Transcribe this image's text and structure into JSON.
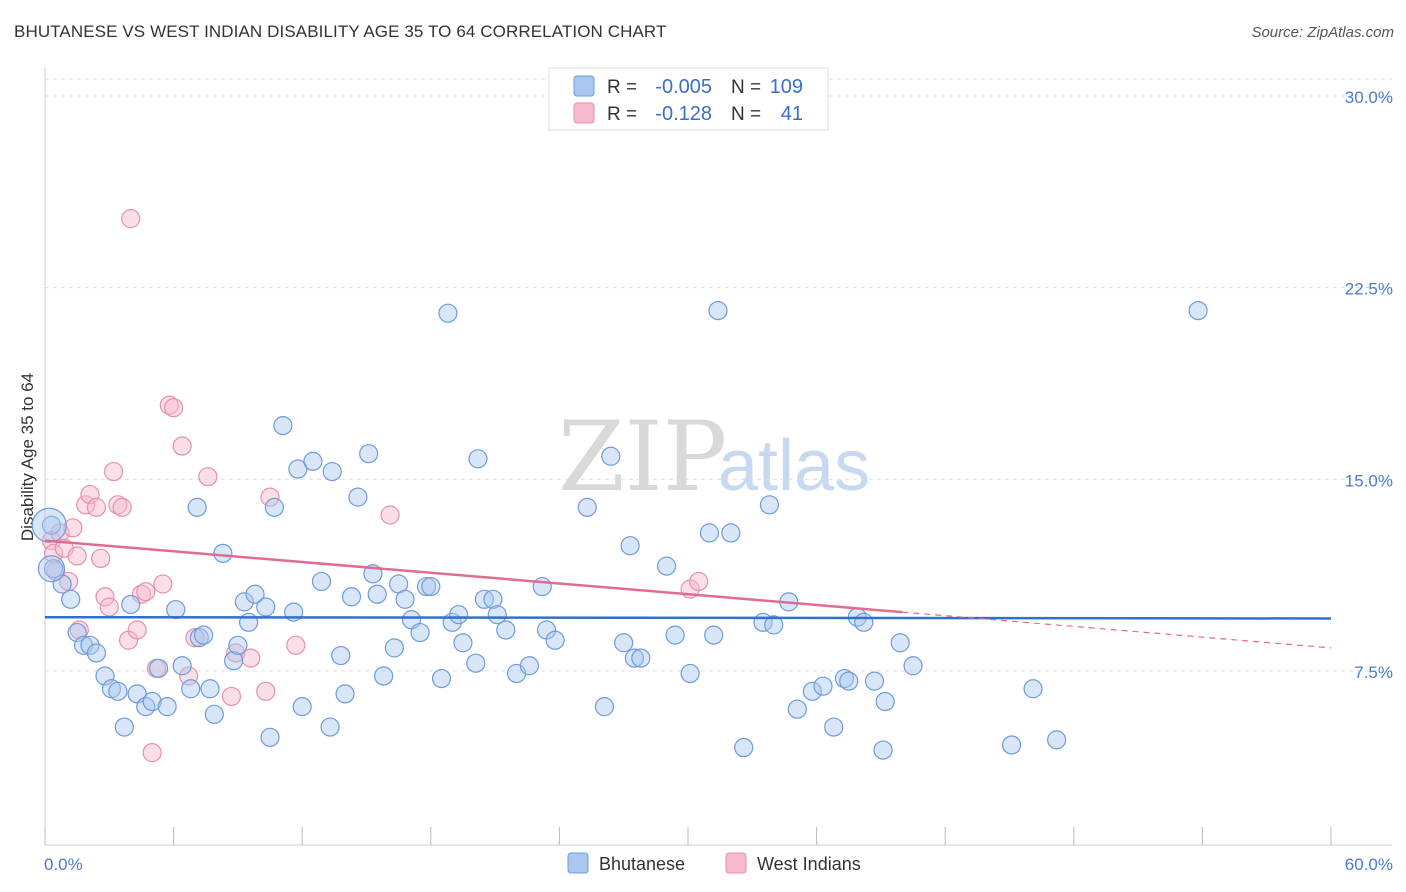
{
  "header": {
    "title": "BHUTANESE VS WEST INDIAN DISABILITY AGE 35 TO 64 CORRELATION CHART",
    "source": "Source: ZipAtlas.com"
  },
  "watermark": {
    "zip": "ZIP",
    "atlas": "atlas"
  },
  "colors": {
    "blue_fill": "#a9c7ef",
    "blue_stroke": "#6f9bd8",
    "blue_line": "#2f6fd0",
    "pink_fill": "#f6b8cb",
    "pink_stroke": "#e690ac",
    "pink_line": "#e06b93",
    "grid": "#dddddd",
    "tick_text": "#4a7cc9"
  },
  "legend": {
    "rows": [
      {
        "r_label": "R =",
        "r_value": "-0.005",
        "n_label": "N =",
        "n_value": "109"
      },
      {
        "r_label": "R =",
        "r_value": "-0.128",
        "n_label": "N =",
        "n_value": "41"
      }
    ]
  },
  "chart_data": {
    "type": "scatter",
    "title": "BHUTANESE VS WEST INDIAN DISABILITY AGE 35 TO 64 CORRELATION CHART",
    "xlabel": "",
    "ylabel": "Disability Age 35 to 64",
    "xlim": [
      0,
      60
    ],
    "ylim": [
      0,
      31
    ],
    "x_tick_labels": [
      "0.0%",
      "60.0%"
    ],
    "y_ticks": [
      7.5,
      15.0,
      22.5,
      30.0
    ],
    "y_tick_labels": [
      "7.5%",
      "15.0%",
      "22.5%",
      "30.0%"
    ],
    "grid": true,
    "legend_position": "top-center",
    "series": [
      {
        "name": "Bhutanese",
        "color": "#a9c7ef",
        "trend": {
          "x": [
            0,
            60
          ],
          "y": [
            9.6,
            9.55
          ],
          "dashed_after": null
        },
        "points": [
          [
            0.3,
            13.2
          ],
          [
            0.4,
            11.5
          ],
          [
            0.8,
            10.9
          ],
          [
            1.2,
            10.3
          ],
          [
            1.5,
            9.0
          ],
          [
            1.8,
            8.5
          ],
          [
            2.1,
            8.5
          ],
          [
            2.4,
            8.2
          ],
          [
            2.8,
            7.3
          ],
          [
            3.1,
            6.8
          ],
          [
            3.4,
            6.7
          ],
          [
            3.7,
            5.3
          ],
          [
            4.0,
            10.1
          ],
          [
            4.3,
            6.6
          ],
          [
            4.7,
            6.1
          ],
          [
            5.0,
            6.3
          ],
          [
            5.3,
            7.6
          ],
          [
            5.7,
            6.1
          ],
          [
            6.1,
            9.9
          ],
          [
            6.4,
            7.7
          ],
          [
            6.8,
            6.8
          ],
          [
            7.2,
            8.8
          ],
          [
            7.4,
            8.9
          ],
          [
            7.1,
            13.9
          ],
          [
            7.7,
            6.8
          ],
          [
            7.9,
            5.8
          ],
          [
            8.3,
            12.1
          ],
          [
            8.8,
            7.9
          ],
          [
            9.0,
            8.5
          ],
          [
            9.3,
            10.2
          ],
          [
            9.5,
            9.4
          ],
          [
            9.8,
            10.5
          ],
          [
            10.3,
            10.0
          ],
          [
            10.5,
            4.9
          ],
          [
            10.7,
            13.9
          ],
          [
            11.1,
            17.1
          ],
          [
            11.6,
            9.8
          ],
          [
            11.8,
            15.4
          ],
          [
            12.0,
            6.1
          ],
          [
            12.5,
            15.7
          ],
          [
            12.9,
            11.0
          ],
          [
            13.3,
            5.3
          ],
          [
            13.4,
            15.3
          ],
          [
            13.8,
            8.1
          ],
          [
            14.0,
            6.6
          ],
          [
            14.3,
            10.4
          ],
          [
            14.6,
            14.3
          ],
          [
            15.1,
            16.0
          ],
          [
            15.3,
            11.3
          ],
          [
            15.5,
            10.5
          ],
          [
            15.8,
            7.3
          ],
          [
            16.3,
            8.4
          ],
          [
            16.5,
            10.9
          ],
          [
            16.8,
            10.3
          ],
          [
            17.1,
            9.5
          ],
          [
            17.5,
            9.0
          ],
          [
            17.8,
            10.8
          ],
          [
            18.0,
            10.8
          ],
          [
            18.5,
            7.2
          ],
          [
            18.8,
            21.5
          ],
          [
            19.0,
            9.4
          ],
          [
            19.3,
            9.7
          ],
          [
            19.5,
            8.6
          ],
          [
            20.1,
            7.8
          ],
          [
            20.2,
            15.8
          ],
          [
            20.5,
            10.3
          ],
          [
            20.9,
            10.3
          ],
          [
            21.1,
            9.7
          ],
          [
            21.5,
            9.1
          ],
          [
            22.0,
            7.4
          ],
          [
            22.6,
            7.7
          ],
          [
            23.2,
            10.8
          ],
          [
            23.4,
            9.1
          ],
          [
            23.8,
            8.7
          ],
          [
            25.3,
            13.9
          ],
          [
            26.1,
            6.1
          ],
          [
            26.4,
            15.9
          ],
          [
            27.0,
            8.6
          ],
          [
            27.3,
            12.4
          ],
          [
            27.5,
            8.0
          ],
          [
            27.8,
            8.0
          ],
          [
            29.0,
            11.6
          ],
          [
            29.4,
            8.9
          ],
          [
            30.1,
            7.4
          ],
          [
            31.0,
            12.9
          ],
          [
            31.2,
            8.9
          ],
          [
            31.4,
            21.6
          ],
          [
            32.0,
            12.9
          ],
          [
            32.6,
            4.5
          ],
          [
            33.5,
            9.4
          ],
          [
            33.8,
            14.0
          ],
          [
            34.0,
            9.3
          ],
          [
            34.7,
            10.2
          ],
          [
            35.1,
            6.0
          ],
          [
            35.8,
            6.7
          ],
          [
            36.3,
            6.9
          ],
          [
            36.8,
            5.3
          ],
          [
            37.3,
            7.2
          ],
          [
            37.5,
            7.1
          ],
          [
            37.9,
            9.6
          ],
          [
            38.2,
            9.4
          ],
          [
            38.7,
            7.1
          ],
          [
            39.1,
            4.4
          ],
          [
            39.2,
            6.3
          ],
          [
            39.9,
            8.6
          ],
          [
            40.5,
            7.7
          ],
          [
            45.1,
            4.6
          ],
          [
            46.1,
            6.8
          ],
          [
            47.2,
            4.8
          ],
          [
            53.8,
            21.6
          ]
        ]
      },
      {
        "name": "West Indians",
        "color": "#f6b8cb",
        "trend": {
          "x": [
            0,
            60
          ],
          "y": [
            12.6,
            8.4
          ],
          "solid_until": 40
        },
        "points": [
          [
            0.3,
            12.6
          ],
          [
            0.4,
            12.1
          ],
          [
            0.5,
            11.4
          ],
          [
            0.7,
            12.9
          ],
          [
            0.9,
            12.3
          ],
          [
            1.1,
            11.0
          ],
          [
            1.3,
            13.1
          ],
          [
            1.5,
            12.0
          ],
          [
            1.6,
            9.1
          ],
          [
            1.9,
            14.0
          ],
          [
            2.1,
            14.4
          ],
          [
            2.4,
            13.9
          ],
          [
            2.6,
            11.9
          ],
          [
            2.8,
            10.4
          ],
          [
            3.0,
            10.0
          ],
          [
            3.2,
            15.3
          ],
          [
            3.4,
            14.0
          ],
          [
            3.6,
            13.9
          ],
          [
            3.9,
            8.7
          ],
          [
            4.0,
            25.2
          ],
          [
            4.3,
            9.1
          ],
          [
            4.5,
            10.5
          ],
          [
            4.7,
            10.6
          ],
          [
            5.0,
            4.3
          ],
          [
            5.2,
            7.6
          ],
          [
            5.5,
            10.9
          ],
          [
            5.8,
            17.9
          ],
          [
            6.0,
            17.8
          ],
          [
            6.4,
            16.3
          ],
          [
            6.7,
            7.3
          ],
          [
            7.0,
            8.8
          ],
          [
            7.6,
            15.1
          ],
          [
            8.7,
            6.5
          ],
          [
            8.9,
            8.2
          ],
          [
            9.6,
            8.0
          ],
          [
            10.3,
            6.7
          ],
          [
            10.5,
            14.3
          ],
          [
            11.7,
            8.5
          ],
          [
            16.1,
            13.6
          ],
          [
            30.1,
            10.7
          ],
          [
            30.5,
            11.0
          ]
        ]
      }
    ]
  },
  "bottom_legend": {
    "items": [
      "Bhutanese",
      "West Indians"
    ]
  }
}
